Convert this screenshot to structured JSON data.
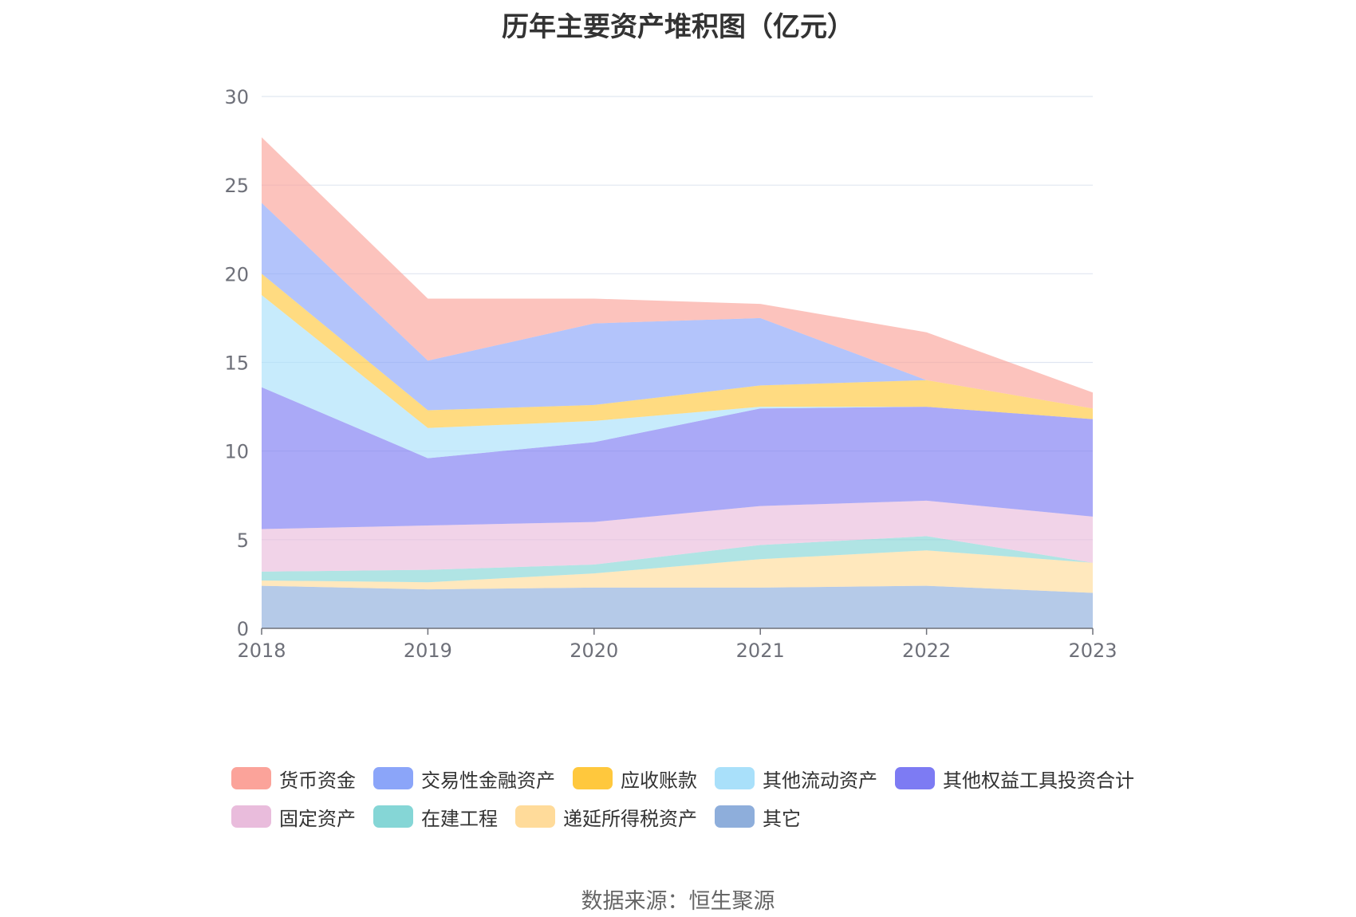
{
  "source_text": "数据来源：恒生聚源",
  "chart_data": {
    "type": "area",
    "stacked": true,
    "title": "历年主要资产堆积图（亿元）",
    "xlabel": "",
    "ylabel": "",
    "ylim": [
      0,
      30
    ],
    "yticks": [
      "0",
      "5",
      "10",
      "15",
      "20",
      "25",
      "30"
    ],
    "categories": [
      "2018",
      "2019",
      "2020",
      "2021",
      "2022",
      "2023"
    ],
    "grid": true,
    "legend_position": "bottom",
    "series": [
      {
        "name": "其它",
        "color": "#8eaedb",
        "values": [
          2.4,
          2.2,
          2.3,
          2.3,
          2.4,
          2.0
        ]
      },
      {
        "name": "递延所得税资产",
        "color": "#ffdb9a",
        "values": [
          0.3,
          0.4,
          0.8,
          1.6,
          2.0,
          1.7
        ]
      },
      {
        "name": "在建工程",
        "color": "#85d6d6",
        "values": [
          0.5,
          0.7,
          0.5,
          0.8,
          0.8,
          0.0
        ]
      },
      {
        "name": "固定资产",
        "color": "#e9bcdc",
        "values": [
          2.4,
          2.5,
          2.4,
          2.2,
          2.0,
          2.6
        ]
      },
      {
        "name": "其他权益工具投资合计",
        "color": "#7d7bf3",
        "values": [
          8.0,
          3.8,
          4.5,
          5.5,
          5.3,
          5.5
        ]
      },
      {
        "name": "其他流动资产",
        "color": "#a9e0fa",
        "values": [
          5.2,
          1.7,
          1.2,
          0.1,
          0.0,
          0.0
        ]
      },
      {
        "name": "应收账款",
        "color": "#ffc83d",
        "values": [
          1.2,
          1.0,
          0.9,
          1.2,
          1.5,
          0.6
        ]
      },
      {
        "name": "交易性金融资产",
        "color": "#8ba5f9",
        "values": [
          4.0,
          2.8,
          4.6,
          3.8,
          0.0,
          0.0
        ]
      },
      {
        "name": "货币资金",
        "color": "#fba39a",
        "values": [
          3.7,
          3.5,
          1.4,
          0.8,
          2.7,
          0.9
        ]
      }
    ],
    "legend_order": [
      "货币资金",
      "交易性金融资产",
      "应收账款",
      "其他流动资产",
      "其他权益工具投资合计",
      "固定资产",
      "在建工程",
      "递延所得税资产",
      "其它"
    ]
  }
}
